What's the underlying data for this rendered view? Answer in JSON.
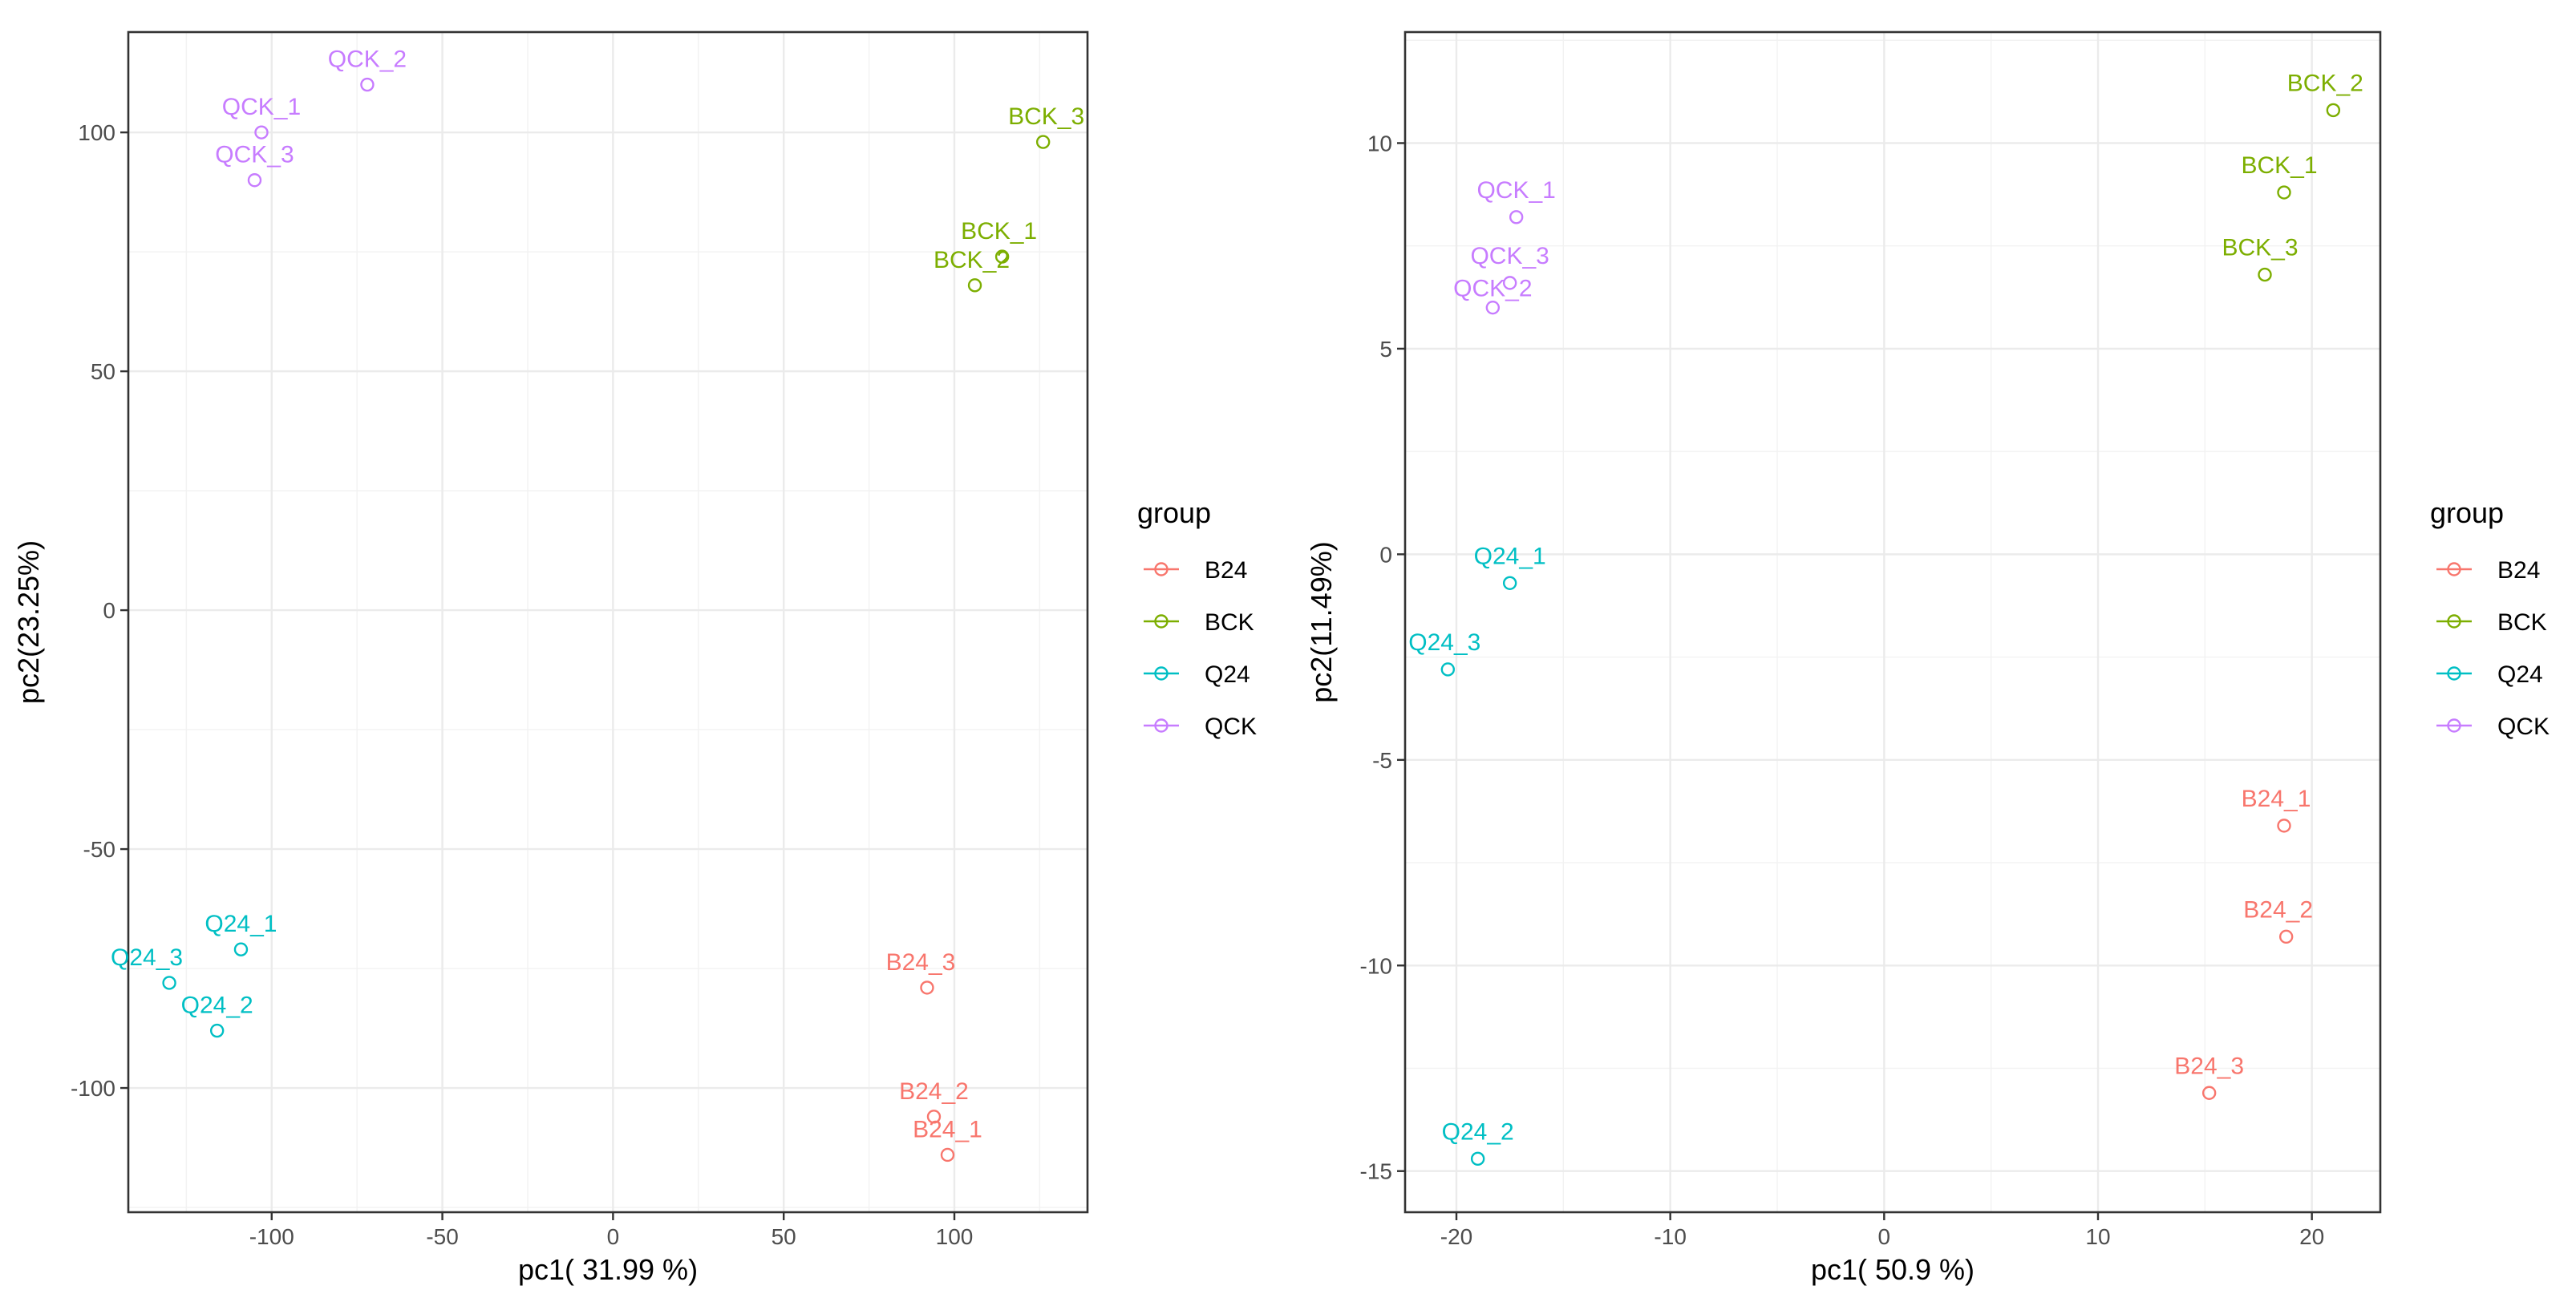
{
  "colors": {
    "B24": "#F8766D",
    "BCK": "#7CAE00",
    "Q24": "#00BFC4",
    "QCK": "#C77CFF"
  },
  "chart_data": [
    {
      "type": "scatter",
      "xlabel": "pc1( 31.99 %)",
      "ylabel": "pc2(23.25%)",
      "xlim": [
        -142,
        139
      ],
      "ylim": [
        -126,
        121
      ],
      "xticks": [
        -100,
        -50,
        0,
        50,
        100
      ],
      "yticks": [
        -100,
        -50,
        0,
        50,
        100
      ],
      "xtick_labels": [
        "-100",
        "-50",
        "0",
        "50",
        "100"
      ],
      "ytick_labels": [
        "-100",
        "-50",
        "0",
        "50",
        "100"
      ],
      "grid": true,
      "legend": {
        "title": "group",
        "position": "right",
        "entries": [
          "B24",
          "BCK",
          "Q24",
          "QCK"
        ]
      },
      "series": [
        {
          "name": "B24",
          "points": [
            {
              "label": "B24_3",
              "x": 92,
              "y": -79
            },
            {
              "label": "B24_2",
              "x": 94,
              "y": -106
            },
            {
              "label": "B24_1",
              "x": 98,
              "y": -114
            }
          ]
        },
        {
          "name": "BCK",
          "points": [
            {
              "label": "BCK_3",
              "x": 126,
              "y": 98
            },
            {
              "label": "BCK_1",
              "x": 114,
              "y": 74
            },
            {
              "label": "BCK_2",
              "x": 106,
              "y": 68
            }
          ]
        },
        {
          "name": "Q24",
          "points": [
            {
              "label": "Q24_1",
              "x": -109,
              "y": -71
            },
            {
              "label": "Q24_3",
              "x": -130,
              "y": -78
            },
            {
              "label": "Q24_2",
              "x": -116,
              "y": -88
            }
          ]
        },
        {
          "name": "QCK",
          "points": [
            {
              "label": "QCK_2",
              "x": -72,
              "y": 110
            },
            {
              "label": "QCK_1",
              "x": -103,
              "y": 100
            },
            {
              "label": "QCK_3",
              "x": -105,
              "y": 90
            }
          ]
        }
      ]
    },
    {
      "type": "scatter",
      "xlabel": "pc1( 50.9 %)",
      "ylabel": "pc2(11.49%)",
      "xlim": [
        -22.4,
        23.2
      ],
      "ylim": [
        -16.0,
        12.7
      ],
      "xticks": [
        -20,
        -10,
        0,
        10,
        20
      ],
      "yticks": [
        -15,
        -10,
        -5,
        0,
        5,
        10
      ],
      "xtick_labels": [
        "-20",
        "-10",
        "0",
        "10",
        "20"
      ],
      "ytick_labels": [
        "-15",
        "-10",
        "-5",
        "0",
        "5",
        "10"
      ],
      "grid": true,
      "legend": {
        "title": "group",
        "position": "right",
        "entries": [
          "B24",
          "BCK",
          "Q24",
          "QCK"
        ]
      },
      "series": [
        {
          "name": "B24",
          "points": [
            {
              "label": "B24_1",
              "x": 18.7,
              "y": -6.6
            },
            {
              "label": "B24_2",
              "x": 18.8,
              "y": -9.3
            },
            {
              "label": "B24_3",
              "x": 15.2,
              "y": -13.1
            }
          ]
        },
        {
          "name": "BCK",
          "points": [
            {
              "label": "BCK_2",
              "x": 21.0,
              "y": 10.8
            },
            {
              "label": "BCK_1",
              "x": 18.7,
              "y": 8.8
            },
            {
              "label": "BCK_3",
              "x": 17.8,
              "y": 6.8
            }
          ]
        },
        {
          "name": "Q24",
          "points": [
            {
              "label": "Q24_1",
              "x": -17.5,
              "y": -0.7
            },
            {
              "label": "Q24_3",
              "x": -20.4,
              "y": -2.8
            },
            {
              "label": "Q24_2",
              "x": -19.0,
              "y": -14.7
            }
          ]
        },
        {
          "name": "QCK",
          "points": [
            {
              "label": "QCK_1",
              "x": -17.2,
              "y": 8.2
            },
            {
              "label": "QCK_3",
              "x": -17.5,
              "y": 6.6
            },
            {
              "label": "QCK_2",
              "x": -18.3,
              "y": 6.0
            }
          ]
        }
      ]
    }
  ]
}
